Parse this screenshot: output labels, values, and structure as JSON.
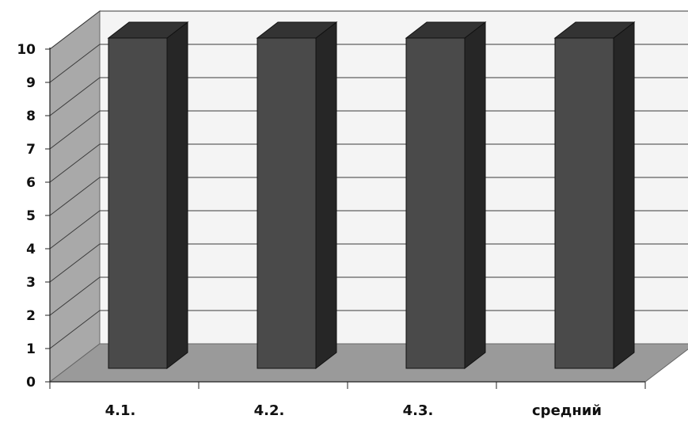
{
  "chart_data": {
    "type": "bar",
    "style": "3d-column",
    "categories": [
      "4.1.",
      "4.2.",
      "4.3.",
      "средний"
    ],
    "values": [
      10,
      10,
      10,
      10
    ],
    "ylim": [
      0,
      10
    ],
    "yticks": [
      0,
      1,
      2,
      3,
      4,
      5,
      6,
      7,
      8,
      9,
      10
    ],
    "grid": true,
    "legend": "none",
    "colors": {
      "bar_front": "#4a4a4a",
      "bar_side": "#262626",
      "bar_top": "#333333",
      "back_wall": "#f4f4f4",
      "side_wall": "#a9a9a9",
      "floor": "#9a9a9a",
      "gridline": "#3a3a3a",
      "text": "#111111"
    }
  }
}
